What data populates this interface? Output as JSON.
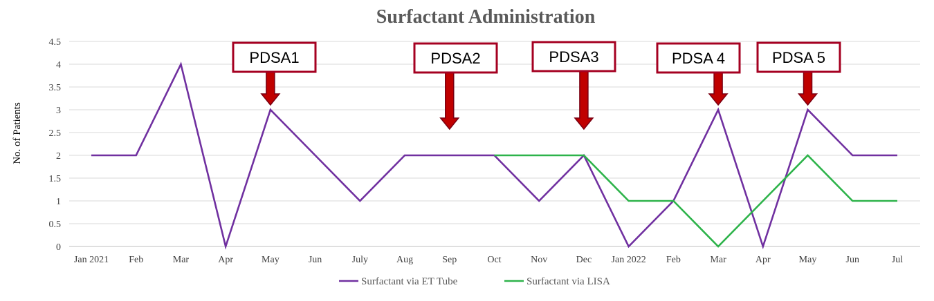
{
  "chart_data": {
    "type": "line",
    "title": "Surfactant Administration",
    "ylabel": "No. of Patients",
    "xlabel": "",
    "ylim": [
      0,
      4.5
    ],
    "yticks": [
      "0",
      "0.5",
      "1",
      "1.5",
      "2",
      "2.5",
      "3",
      "3.5",
      "4",
      "4.5"
    ],
    "categories": [
      "Jan 2021",
      "Feb",
      "Mar",
      "Apr",
      "May",
      "Jun",
      "July",
      "Aug",
      "Sep",
      "Oct",
      "Nov",
      "Dec",
      "Jan 2022",
      "Feb",
      "Mar",
      "Apr",
      "May",
      "Jun",
      "Jul"
    ],
    "grid": true,
    "legend_position": "bottom",
    "series": [
      {
        "name": "Surfactant via ET Tube",
        "color": "#7030a0",
        "values": [
          2,
          2,
          4,
          0,
          3,
          2,
          1,
          2,
          2,
          2,
          1,
          2,
          0,
          1,
          3,
          0,
          3,
          2,
          2
        ]
      },
      {
        "name": "Surfactant via LISA",
        "color": "#2db34a",
        "values": [
          null,
          null,
          null,
          null,
          null,
          null,
          null,
          null,
          null,
          2,
          2,
          2,
          1,
          1,
          0,
          1,
          2,
          1,
          1
        ]
      }
    ],
    "annotations": [
      {
        "label": "PDSA1",
        "category_index": 4
      },
      {
        "label": "PDSA2",
        "category_index": 8
      },
      {
        "label": "PDSA3",
        "category_index": 11
      },
      {
        "label": "PDSA 4",
        "category_index": 14
      },
      {
        "label": "PDSA 5",
        "category_index": 16
      }
    ],
    "annotation_colors": {
      "box_border": "#a50021",
      "arrow": "#c00000",
      "arrow_dark": "#7a0012"
    }
  }
}
